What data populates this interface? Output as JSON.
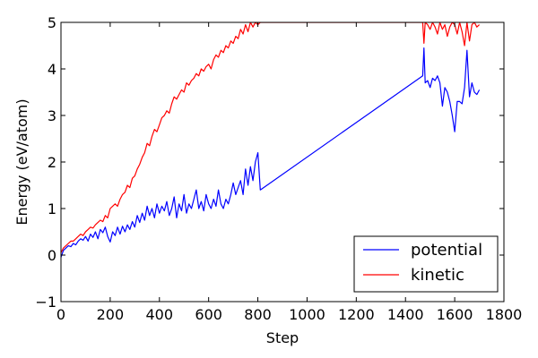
{
  "chart_data": {
    "type": "line",
    "title": "",
    "xlabel": "Step",
    "ylabel": "Energy (eV/atom)",
    "xlim": [
      0,
      1800
    ],
    "ylim": [
      -1,
      5
    ],
    "xticks": [
      0,
      200,
      400,
      600,
      800,
      1000,
      1200,
      1400,
      1600,
      1800
    ],
    "yticks": [
      -1,
      0,
      1,
      2,
      3,
      4,
      5
    ],
    "grid": false,
    "legend_position": "lower-right",
    "series": [
      {
        "name": "potential",
        "color": "#0000ff",
        "points": [
          [
            0,
            -0.05
          ],
          [
            10,
            0.1
          ],
          [
            20,
            0.15
          ],
          [
            30,
            0.2
          ],
          [
            40,
            0.18
          ],
          [
            50,
            0.25
          ],
          [
            60,
            0.22
          ],
          [
            70,
            0.3
          ],
          [
            80,
            0.35
          ],
          [
            90,
            0.32
          ],
          [
            100,
            0.4
          ],
          [
            110,
            0.3
          ],
          [
            120,
            0.45
          ],
          [
            130,
            0.38
          ],
          [
            140,
            0.5
          ],
          [
            150,
            0.35
          ],
          [
            160,
            0.55
          ],
          [
            170,
            0.48
          ],
          [
            180,
            0.6
          ],
          [
            190,
            0.4
          ],
          [
            200,
            0.28
          ],
          [
            210,
            0.5
          ],
          [
            220,
            0.42
          ],
          [
            230,
            0.6
          ],
          [
            240,
            0.45
          ],
          [
            250,
            0.62
          ],
          [
            260,
            0.5
          ],
          [
            270,
            0.65
          ],
          [
            280,
            0.55
          ],
          [
            290,
            0.72
          ],
          [
            300,
            0.6
          ],
          [
            310,
            0.85
          ],
          [
            320,
            0.7
          ],
          [
            330,
            0.9
          ],
          [
            340,
            0.75
          ],
          [
            350,
            1.05
          ],
          [
            360,
            0.85
          ],
          [
            370,
            1.0
          ],
          [
            380,
            0.8
          ],
          [
            390,
            1.1
          ],
          [
            400,
            0.9
          ],
          [
            410,
            1.05
          ],
          [
            420,
            0.95
          ],
          [
            430,
            1.15
          ],
          [
            440,
            0.85
          ],
          [
            450,
            1.0
          ],
          [
            460,
            1.25
          ],
          [
            470,
            0.8
          ],
          [
            480,
            1.1
          ],
          [
            490,
            0.95
          ],
          [
            500,
            1.3
          ],
          [
            510,
            0.9
          ],
          [
            520,
            1.1
          ],
          [
            530,
            1.0
          ],
          [
            540,
            1.2
          ],
          [
            550,
            1.4
          ],
          [
            560,
            1.0
          ],
          [
            570,
            1.15
          ],
          [
            580,
            0.95
          ],
          [
            590,
            1.3
          ],
          [
            600,
            1.1
          ],
          [
            610,
            1.0
          ],
          [
            620,
            1.2
          ],
          [
            630,
            1.05
          ],
          [
            640,
            1.4
          ],
          [
            650,
            1.1
          ],
          [
            660,
            1.0
          ],
          [
            670,
            1.2
          ],
          [
            680,
            1.1
          ],
          [
            690,
            1.3
          ],
          [
            700,
            1.55
          ],
          [
            710,
            1.3
          ],
          [
            720,
            1.45
          ],
          [
            730,
            1.6
          ],
          [
            740,
            1.3
          ],
          [
            750,
            1.85
          ],
          [
            760,
            1.5
          ],
          [
            770,
            1.9
          ],
          [
            780,
            1.6
          ],
          [
            790,
            2.0
          ],
          [
            800,
            2.2
          ],
          [
            810,
            1.4
          ],
          [
            1470,
            3.85
          ],
          [
            1475,
            4.45
          ],
          [
            1480,
            3.7
          ],
          [
            1490,
            3.75
          ],
          [
            1500,
            3.6
          ],
          [
            1510,
            3.8
          ],
          [
            1520,
            3.75
          ],
          [
            1530,
            3.85
          ],
          [
            1540,
            3.7
          ],
          [
            1550,
            3.2
          ],
          [
            1560,
            3.6
          ],
          [
            1570,
            3.5
          ],
          [
            1580,
            3.3
          ],
          [
            1590,
            3.0
          ],
          [
            1600,
            2.65
          ],
          [
            1610,
            3.3
          ],
          [
            1620,
            3.3
          ],
          [
            1630,
            3.25
          ],
          [
            1640,
            3.6
          ],
          [
            1650,
            4.4
          ],
          [
            1660,
            3.4
          ],
          [
            1670,
            3.7
          ],
          [
            1680,
            3.5
          ],
          [
            1690,
            3.45
          ],
          [
            1700,
            3.55
          ]
        ]
      },
      {
        "name": "kinetic",
        "color": "#ff0000",
        "points": [
          [
            0,
            0.05
          ],
          [
            10,
            0.15
          ],
          [
            20,
            0.2
          ],
          [
            30,
            0.25
          ],
          [
            40,
            0.3
          ],
          [
            50,
            0.3
          ],
          [
            60,
            0.35
          ],
          [
            70,
            0.4
          ],
          [
            80,
            0.45
          ],
          [
            90,
            0.42
          ],
          [
            100,
            0.5
          ],
          [
            110,
            0.55
          ],
          [
            120,
            0.6
          ],
          [
            130,
            0.58
          ],
          [
            140,
            0.65
          ],
          [
            150,
            0.7
          ],
          [
            160,
            0.75
          ],
          [
            170,
            0.72
          ],
          [
            180,
            0.85
          ],
          [
            190,
            0.8
          ],
          [
            200,
            1.0
          ],
          [
            210,
            1.05
          ],
          [
            220,
            1.1
          ],
          [
            230,
            1.05
          ],
          [
            240,
            1.2
          ],
          [
            250,
            1.3
          ],
          [
            260,
            1.35
          ],
          [
            270,
            1.5
          ],
          [
            280,
            1.45
          ],
          [
            290,
            1.65
          ],
          [
            300,
            1.7
          ],
          [
            310,
            1.85
          ],
          [
            320,
            1.95
          ],
          [
            330,
            2.1
          ],
          [
            340,
            2.2
          ],
          [
            350,
            2.4
          ],
          [
            360,
            2.35
          ],
          [
            370,
            2.55
          ],
          [
            380,
            2.7
          ],
          [
            390,
            2.65
          ],
          [
            400,
            2.8
          ],
          [
            410,
            2.95
          ],
          [
            420,
            3.0
          ],
          [
            430,
            3.1
          ],
          [
            440,
            3.05
          ],
          [
            450,
            3.25
          ],
          [
            460,
            3.4
          ],
          [
            470,
            3.35
          ],
          [
            480,
            3.45
          ],
          [
            490,
            3.55
          ],
          [
            500,
            3.5
          ],
          [
            510,
            3.7
          ],
          [
            520,
            3.65
          ],
          [
            530,
            3.75
          ],
          [
            540,
            3.8
          ],
          [
            550,
            3.9
          ],
          [
            560,
            3.85
          ],
          [
            570,
            4.0
          ],
          [
            580,
            3.95
          ],
          [
            590,
            4.05
          ],
          [
            600,
            4.1
          ],
          [
            610,
            4.0
          ],
          [
            620,
            4.2
          ],
          [
            630,
            4.3
          ],
          [
            640,
            4.25
          ],
          [
            650,
            4.4
          ],
          [
            660,
            4.35
          ],
          [
            670,
            4.5
          ],
          [
            680,
            4.45
          ],
          [
            690,
            4.6
          ],
          [
            700,
            4.55
          ],
          [
            710,
            4.7
          ],
          [
            720,
            4.65
          ],
          [
            730,
            4.85
          ],
          [
            740,
            4.75
          ],
          [
            750,
            4.95
          ],
          [
            760,
            4.8
          ],
          [
            770,
            5.0
          ],
          [
            780,
            4.9
          ],
          [
            790,
            5.0
          ],
          [
            800,
            4.95
          ],
          [
            810,
            5.0
          ],
          [
            1470,
            5.0
          ],
          [
            1475,
            4.55
          ],
          [
            1480,
            5.0
          ],
          [
            1490,
            4.95
          ],
          [
            1500,
            4.85
          ],
          [
            1510,
            5.0
          ],
          [
            1520,
            4.9
          ],
          [
            1530,
            4.75
          ],
          [
            1540,
            5.0
          ],
          [
            1550,
            4.85
          ],
          [
            1560,
            4.95
          ],
          [
            1570,
            4.7
          ],
          [
            1580,
            4.9
          ],
          [
            1590,
            5.0
          ],
          [
            1600,
            4.95
          ],
          [
            1610,
            4.75
          ],
          [
            1620,
            5.0
          ],
          [
            1630,
            4.8
          ],
          [
            1640,
            4.5
          ],
          [
            1650,
            5.0
          ],
          [
            1660,
            4.6
          ],
          [
            1670,
            4.95
          ],
          [
            1680,
            5.0
          ],
          [
            1690,
            4.9
          ],
          [
            1700,
            4.95
          ]
        ]
      }
    ]
  }
}
